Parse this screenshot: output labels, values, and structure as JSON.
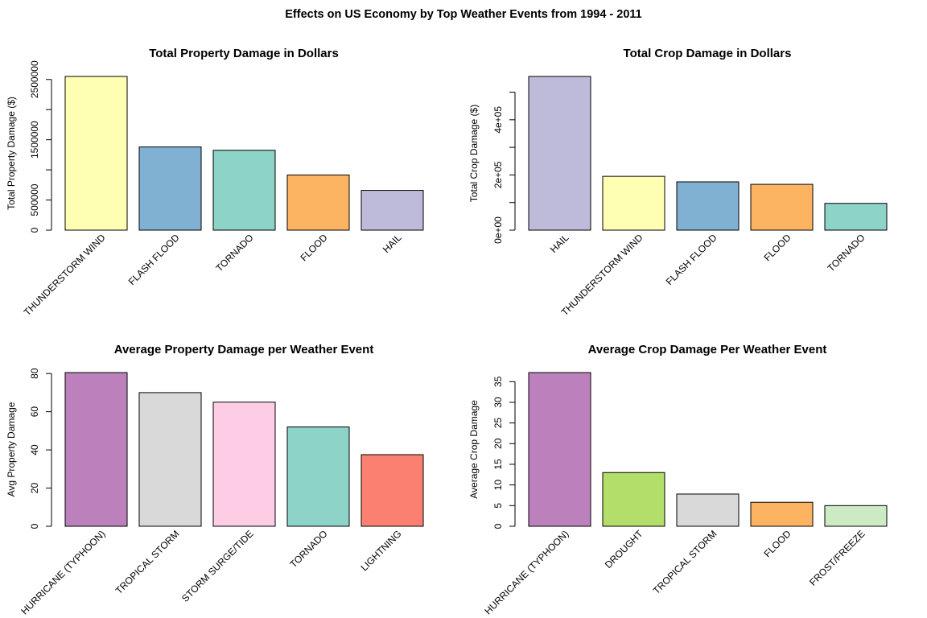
{
  "figure": {
    "title": "Effects on US Economy by Top Weather Events from 1994 - 2011"
  },
  "chart_data": [
    {
      "type": "bar",
      "title": "Total Property Damage in Dollars",
      "xlabel": "",
      "ylabel": "Total Property Damage ($)",
      "categories": [
        "THUNDERSTORM WIND",
        "FLASH FLOOD",
        "TORNADO",
        "FLOOD",
        "HAIL"
      ],
      "values": [
        2550000,
        1380000,
        1325000,
        915000,
        660000
      ],
      "colors": [
        "#FFFFB3",
        "#80B1D3",
        "#8DD3C7",
        "#FDB462",
        "#BEBADA"
      ],
      "ylim": [
        0,
        2550000
      ],
      "yticks": [
        0,
        500000,
        1000000,
        1500000,
        2000000,
        2500000
      ],
      "ytick_labels": [
        "0",
        "500000",
        "",
        "1500000",
        "",
        "2500000"
      ]
    },
    {
      "type": "bar",
      "title": "Total Crop Damage in Dollars",
      "xlabel": "",
      "ylabel": "Total Crop Damage ($)",
      "categories": [
        "HAIL",
        "THUNDERSTORM WIND",
        "FLASH FLOOD",
        "FLOOD",
        "TORNADO"
      ],
      "values": [
        557000,
        195000,
        175000,
        166000,
        97000
      ],
      "colors": [
        "#BEBADA",
        "#FFFFB3",
        "#80B1D3",
        "#FDB462",
        "#8DD3C7"
      ],
      "ylim": [
        0,
        557000
      ],
      "yticks": [
        0,
        100000,
        200000,
        300000,
        400000,
        500000
      ],
      "ytick_labels": [
        "0e+00",
        "",
        "2e+05",
        "",
        "4e+05",
        ""
      ]
    },
    {
      "type": "bar",
      "title": "Average Property Damage per Weather Event",
      "xlabel": "",
      "ylabel": "Avg Property Damage",
      "categories": [
        "HURRICANE (TYPHOON)",
        "TROPICAL STORM",
        "STORM SURGE/TIDE",
        "TORNADO",
        "LIGHTNING"
      ],
      "values": [
        80.5,
        70,
        65,
        52,
        37.5
      ],
      "colors": [
        "#BC80BD",
        "#D9D9D9",
        "#FCCDE5",
        "#8DD3C7",
        "#FB8072"
      ],
      "ylim": [
        0,
        80.5
      ],
      "yticks": [
        0,
        20,
        40,
        60,
        80
      ],
      "ytick_labels": [
        "0",
        "20",
        "40",
        "60",
        "80"
      ]
    },
    {
      "type": "bar",
      "title": "Average Crop Damage Per Weather Event",
      "xlabel": "",
      "ylabel": "Average Crop Damage",
      "categories": [
        "HURRICANE (TYPHOON)",
        "DROUGHT",
        "TROPICAL STORM",
        "FLOOD",
        "FROST/FREEZE"
      ],
      "values": [
        37.2,
        13,
        7.8,
        5.8,
        5
      ],
      "colors": [
        "#BC80BD",
        "#B3DE69",
        "#D9D9D9",
        "#FDB462",
        "#CCEBC5"
      ],
      "ylim": [
        0,
        37.2
      ],
      "yticks": [
        0,
        5,
        10,
        15,
        20,
        25,
        30,
        35
      ],
      "ytick_labels": [
        "0",
        "5",
        "10",
        "15",
        "20",
        "25",
        "30",
        "35"
      ]
    }
  ]
}
